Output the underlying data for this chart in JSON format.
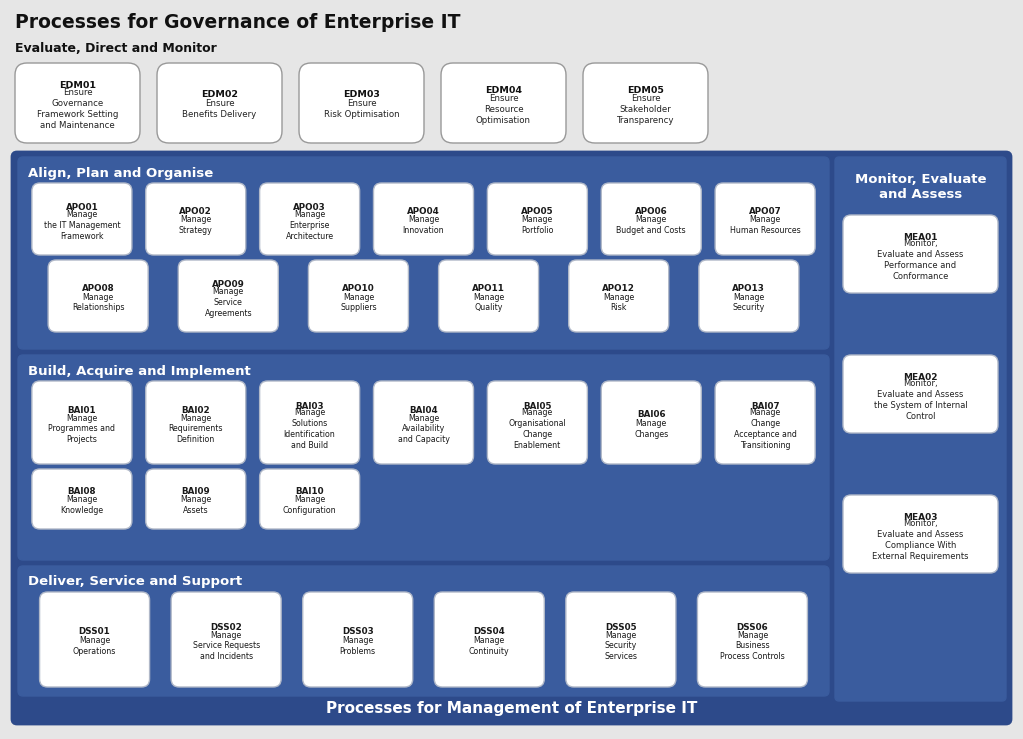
{
  "title": "Processes for Governance of Enterprise IT",
  "subtitle": "Evaluate, Direct and Monitor",
  "bg_color": "#e6e6e6",
  "outer_blue": "#2d4a8a",
  "section_blue": "#3a5c9e",
  "mea_blue": "#3a5c9e",
  "bottom_label": "Processes for Management of Enterprise IT",
  "edm_boxes": [
    {
      "code": "EDM01",
      "label": " Ensure\nGovernance\nFramework Setting\nand Maintenance"
    },
    {
      "code": "EDM02",
      "label": " Ensure\nBenefits Delivery"
    },
    {
      "code": "EDM03",
      "label": " Ensure\nRisk Optimisation"
    },
    {
      "code": "EDM04",
      "label": " Ensure\nResource\nOptimisation"
    },
    {
      "code": "EDM05",
      "label": " Ensure\nStakeholder\nTransparency"
    }
  ],
  "apo_section": {
    "title": "Align, Plan and Organise",
    "row1": [
      {
        "code": "APO01",
        "label": " Manage\nthe IT Management\nFramework"
      },
      {
        "code": "APO02",
        "label": " Manage\nStrategy"
      },
      {
        "code": "APO03",
        "label": " Manage\nEnterprise\nArchitecture"
      },
      {
        "code": "APO04",
        "label": " Manage\nInnovation"
      },
      {
        "code": "APO05",
        "label": " Manage\nPortfolio"
      },
      {
        "code": "APO06",
        "label": " Manage\nBudget and Costs"
      },
      {
        "code": "APO07",
        "label": " Manage\nHuman Resources"
      }
    ],
    "row2": [
      {
        "code": "APO08",
        "label": " Manage\nRelationships"
      },
      {
        "code": "APO09",
        "label": " Manage\nService\nAgreements"
      },
      {
        "code": "APO10",
        "label": " Manage\nSuppliers"
      },
      {
        "code": "APO11",
        "label": " Manage\nQuality"
      },
      {
        "code": "APO12",
        "label": " Manage\nRisk"
      },
      {
        "code": "APO13",
        "label": " Manage\nSecurity"
      }
    ]
  },
  "bai_section": {
    "title": "Build, Acquire and Implement",
    "row1": [
      {
        "code": "BAI01",
        "label": " Manage\nProgrammes and\nProjects"
      },
      {
        "code": "BAI02",
        "label": " Manage\nRequirements\nDefinition"
      },
      {
        "code": "BAI03",
        "label": " Manage\nSolutions\nIdentification\nand Build"
      },
      {
        "code": "BAI04",
        "label": " Manage\nAvailability\nand Capacity"
      },
      {
        "code": "BAI05",
        "label": " Manage\nOrganisational\nChange\nEnablement"
      },
      {
        "code": "BAI06",
        "label": " Manage\nChanges"
      },
      {
        "code": "BAI07",
        "label": " Manage\nChange\nAcceptance and\nTransitioning"
      }
    ],
    "row2": [
      {
        "code": "BAI08",
        "label": " Manage\nKnowledge"
      },
      {
        "code": "BAI09",
        "label": " Manage\nAssets"
      },
      {
        "code": "BAI10",
        "label": " Manage\nConfiguration"
      }
    ]
  },
  "dss_section": {
    "title": "Deliver, Service and Support",
    "row1": [
      {
        "code": "DSS01",
        "label": " Manage\nOperations"
      },
      {
        "code": "DSS02",
        "label": " Manage\nService Requests\nand Incidents"
      },
      {
        "code": "DSS03",
        "label": " Manage\nProblems"
      },
      {
        "code": "DSS04",
        "label": " Manage\nContinuity"
      },
      {
        "code": "DSS05",
        "label": " Manage\nSecurity\nServices"
      },
      {
        "code": "DSS06",
        "label": " Manage\nBusiness\nProcess Controls"
      }
    ]
  },
  "mea_section": {
    "title": "Monitor, Evaluate\nand Assess",
    "boxes": [
      {
        "code": "MEA01",
        "label": " Monitor,\nEvaluate and Assess\nPerformance and\nConformance"
      },
      {
        "code": "MEA02",
        "label": " Monitor,\nEvaluate and Assess\nthe System of Internal\nControl"
      },
      {
        "code": "MEA03",
        "label": " Monitor,\nEvaluate and Assess\nCompliance With\nExternal Requirements"
      }
    ]
  }
}
